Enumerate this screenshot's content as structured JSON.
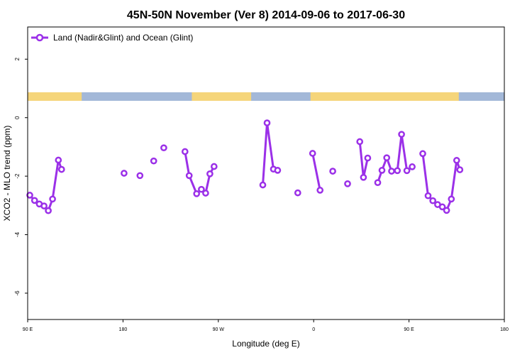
{
  "chart_data": {
    "type": "line",
    "title": "45N-50N November (Ver 8)   2014-09-06 to 2017-06-30",
    "xlabel": "Longitude (deg E)",
    "ylabel": "XCO2 - MLO trend (ppm)",
    "xlim": [
      90,
      450
    ],
    "ylim": [
      -6.9,
      3.1
    ],
    "x_ticks": [
      {
        "value": 90,
        "label": "90 E"
      },
      {
        "value": 180,
        "label": "180"
      },
      {
        "value": 270,
        "label": "90 W"
      },
      {
        "value": 360,
        "label": "0"
      },
      {
        "value": 450,
        "label": "90 E"
      },
      {
        "value": 540,
        "label": "180"
      }
    ],
    "y_ticks": [
      {
        "value": -6,
        "label": "-6"
      },
      {
        "value": -4,
        "label": "-4"
      },
      {
        "value": -2,
        "label": "-2"
      },
      {
        "value": 0,
        "label": "0"
      },
      {
        "value": 2,
        "label": "2"
      }
    ],
    "legend": {
      "position": "top-left"
    },
    "land_mask": {
      "colors": {
        "land": "#f5d57a",
        "ocean": "#a3b8d8"
      },
      "land_ranges": [
        [
          90,
          141
        ],
        [
          245,
          301
        ],
        [
          357,
          497
        ]
      ]
    },
    "series": [
      {
        "name": "Land (Nadir&Glint) and Ocean (Glint)",
        "color": "#9b30e8",
        "segments": [
          [
            [
              92,
              -2.65
            ],
            [
              96.5,
              -2.83
            ],
            [
              101,
              -2.95
            ],
            [
              105.5,
              -3.02
            ],
            [
              109.5,
              -3.18
            ],
            [
              113.5,
              -2.78
            ],
            [
              119,
              -1.45
            ],
            [
              122,
              -1.77
            ]
          ],
          [
            [
              181,
              -1.9
            ]
          ],
          [
            [
              196,
              -1.98
            ]
          ],
          [
            [
              209,
              -1.48
            ]
          ],
          [
            [
              218.5,
              -1.03
            ]
          ],
          [
            [
              238.5,
              -1.16
            ],
            [
              242.5,
              -1.98
            ],
            [
              249.5,
              -2.6
            ],
            [
              254,
              -2.45
            ],
            [
              258,
              -2.58
            ],
            [
              262,
              -1.92
            ],
            [
              266,
              -1.67
            ]
          ],
          [
            [
              312,
              -2.3
            ],
            [
              316,
              -0.18
            ],
            [
              322,
              -1.76
            ],
            [
              326,
              -1.8
            ]
          ],
          [
            [
              345,
              -2.57
            ]
          ],
          [
            [
              359,
              -1.22
            ],
            [
              366,
              -2.48
            ]
          ],
          [
            [
              378,
              -1.83
            ]
          ],
          [
            [
              392,
              -2.26
            ]
          ],
          [
            [
              403.5,
              -0.82
            ],
            [
              407,
              -2.04
            ],
            [
              411,
              -1.38
            ]
          ],
          [
            [
              420.5,
              -2.22
            ],
            [
              424.5,
              -1.8
            ],
            [
              429,
              -1.37
            ],
            [
              433.5,
              -1.83
            ],
            [
              439,
              -1.81
            ],
            [
              443,
              -0.57
            ],
            [
              448,
              -1.81
            ],
            [
              453,
              -1.68
            ]
          ],
          [
            [
              463,
              -1.23
            ],
            [
              468,
              -2.67
            ],
            [
              472.5,
              -2.84
            ],
            [
              477,
              -2.97
            ],
            [
              481.5,
              -3.05
            ],
            [
              485.5,
              -3.17
            ],
            [
              490,
              -2.78
            ],
            [
              495,
              -1.46
            ],
            [
              498,
              -1.78
            ]
          ]
        ]
      }
    ]
  }
}
